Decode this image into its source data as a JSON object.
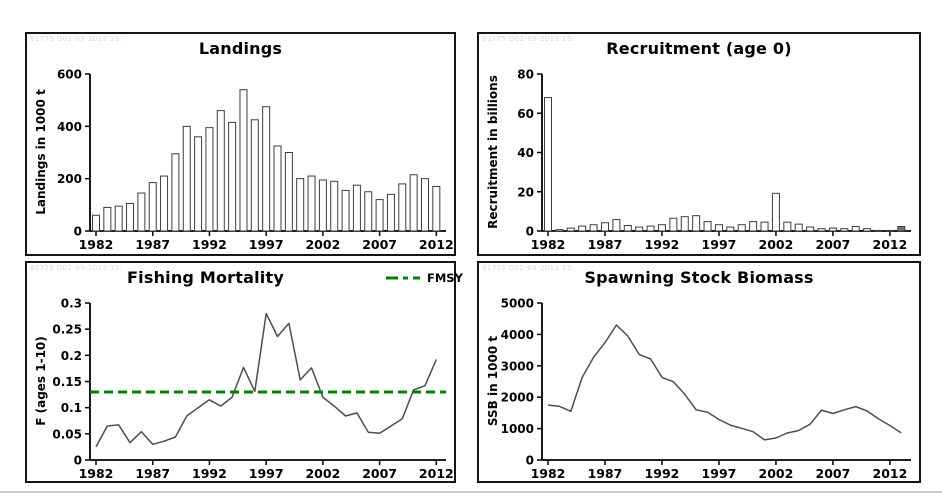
{
  "watermark": "81775 D02-09-2013 15:",
  "colors": {
    "axis": "#000000",
    "bar_fill": "#ffffff",
    "bar_stroke": "#3d3d3d",
    "estimated_bar_fill": "#757575",
    "line": "#4d4d4d",
    "fmsy_green": "#008000",
    "text": "#000000"
  },
  "panels": [
    {
      "id": "landings",
      "title": "Landings",
      "ylabel": "Landings in 1000 t",
      "chart_data": {
        "type": "bar",
        "x": [
          1982,
          1983,
          1984,
          1985,
          1986,
          1987,
          1988,
          1989,
          1990,
          1991,
          1992,
          1993,
          1994,
          1995,
          1996,
          1997,
          1998,
          1999,
          2000,
          2001,
          2002,
          2003,
          2004,
          2005,
          2006,
          2007,
          2008,
          2009,
          2010,
          2011,
          2012
        ],
        "values": [
          60,
          90,
          95,
          105,
          145,
          185,
          210,
          295,
          400,
          360,
          395,
          460,
          415,
          540,
          425,
          475,
          325,
          300,
          200,
          210,
          195,
          190,
          155,
          175,
          150,
          120,
          140,
          180,
          215,
          200,
          170
        ],
        "title": "Landings",
        "xlabel": "",
        "ylabel": "Landings in 1000 t",
        "ylim": [
          0,
          600
        ],
        "yticks": [
          "0",
          "200",
          "400",
          "600"
        ],
        "xticks": [
          1982,
          1987,
          1992,
          1997,
          2002,
          2007,
          2012
        ],
        "grid": false
      }
    },
    {
      "id": "recruitment",
      "title": "Recruitment (age 0)",
      "ylabel": "Recruitment in billions",
      "chart_data": {
        "type": "bar",
        "x": [
          1982,
          1983,
          1984,
          1985,
          1986,
          1987,
          1988,
          1989,
          1990,
          1991,
          1992,
          1993,
          1994,
          1995,
          1996,
          1997,
          1998,
          1999,
          2000,
          2001,
          2002,
          2003,
          2004,
          2005,
          2006,
          2007,
          2008,
          2009,
          2010,
          2011,
          2012,
          2013
        ],
        "values": [
          68,
          0.7,
          1.5,
          2.5,
          3.2,
          4.2,
          5.8,
          2.8,
          2,
          2.5,
          3.2,
          6.5,
          7.3,
          7.8,
          4.8,
          3.2,
          2,
          3.2,
          4.8,
          4.5,
          19.2,
          4.5,
          3.5,
          2,
          1.2,
          1.5,
          1.2,
          2.3,
          1.2,
          0.3,
          0.3,
          2.3
        ],
        "title": "Recruitment (age 0)",
        "xlabel": "",
        "ylabel": "Recruitment in billions",
        "ylim": [
          0,
          80
        ],
        "yticks": [
          "0",
          "20",
          "40",
          "60",
          "80"
        ],
        "xticks": [
          1982,
          1987,
          1992,
          1997,
          2002,
          2007,
          2012
        ],
        "last_value_estimated": true,
        "grid": false
      }
    },
    {
      "id": "fishing-mortality",
      "title": "Fishing Mortality",
      "ylabel": "F (ages 1-10)",
      "chart_data": {
        "type": "line",
        "x": [
          1982,
          1983,
          1984,
          1985,
          1986,
          1987,
          1988,
          1989,
          1990,
          1991,
          1992,
          1993,
          1994,
          1995,
          1996,
          1997,
          1998,
          1999,
          2000,
          2001,
          2002,
          2003,
          2004,
          2005,
          2006,
          2007,
          2008,
          2009,
          2010,
          2011,
          2012
        ],
        "values": [
          0.025,
          0.065,
          0.067,
          0.033,
          0.054,
          0.03,
          0.036,
          0.044,
          0.084,
          0.1,
          0.115,
          0.103,
          0.12,
          0.177,
          0.131,
          0.28,
          0.236,
          0.261,
          0.153,
          0.176,
          0.12,
          0.103,
          0.084,
          0.09,
          0.053,
          0.051,
          0.065,
          0.079,
          0.134,
          0.142,
          0.192
        ],
        "title": "Fishing Mortality",
        "xlabel": "",
        "ylabel": "F (ages 1-10)",
        "ylim": [
          0,
          0.3
        ],
        "yticks": [
          "0",
          "0.05",
          "0.1",
          "0.15",
          "0.2",
          "0.25",
          "0.3"
        ],
        "xticks": [
          1982,
          1987,
          1992,
          1997,
          2002,
          2007,
          2012
        ],
        "ref_line": {
          "value": 0.13,
          "label": "FMSY",
          "color": "#008000",
          "style": "dashed"
        },
        "legend_position": "top-right",
        "grid": false
      }
    },
    {
      "id": "spawning-stock-biomass",
      "title": "Spawning Stock Biomass",
      "ylabel": "SSB in 1000 t",
      "chart_data": {
        "type": "line",
        "x": [
          1982,
          1983,
          1984,
          1985,
          1986,
          1987,
          1988,
          1989,
          1990,
          1991,
          1992,
          1993,
          1994,
          1995,
          1996,
          1997,
          1998,
          1999,
          2000,
          2001,
          2002,
          2003,
          2004,
          2005,
          2006,
          2007,
          2008,
          2009,
          2010,
          2011,
          2012,
          2013
        ],
        "values": [
          1750,
          1710,
          1550,
          2630,
          3270,
          3740,
          4300,
          3950,
          3360,
          3220,
          2630,
          2490,
          2090,
          1600,
          1520,
          1290,
          1110,
          1010,
          900,
          640,
          700,
          860,
          940,
          1140,
          1590,
          1480,
          1600,
          1700,
          1560,
          1310,
          1100,
          860
        ],
        "title": "Spawning Stock Biomass",
        "xlabel": "",
        "ylabel": "SSB in 1000 t",
        "ylim": [
          0,
          5000
        ],
        "yticks": [
          "0",
          "1000",
          "2000",
          "3000",
          "4000",
          "5000"
        ],
        "xticks": [
          1982,
          1987,
          1992,
          1997,
          2002,
          2007,
          2012
        ],
        "grid": false
      }
    }
  ]
}
